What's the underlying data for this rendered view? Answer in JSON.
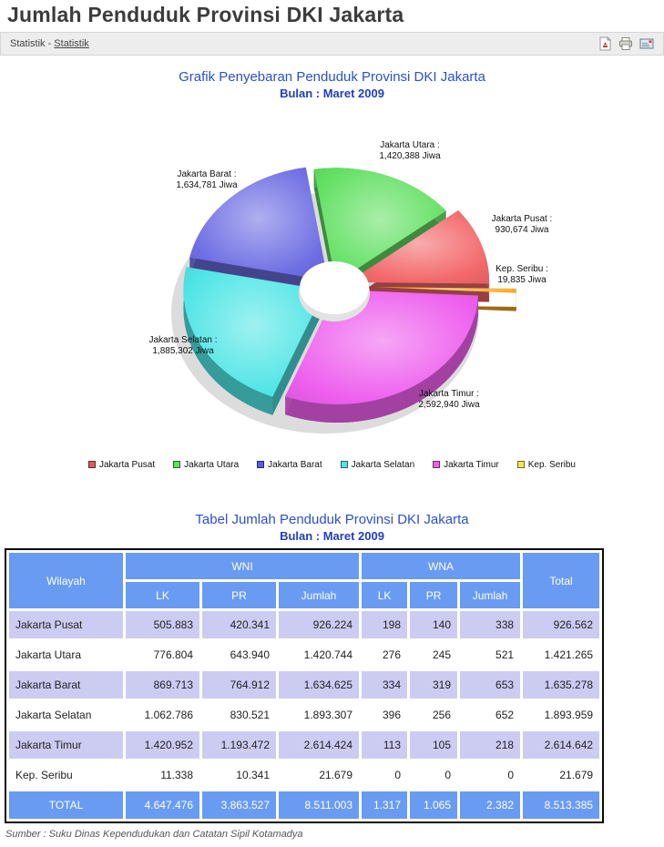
{
  "page": {
    "title": "Jumlah Penduduk Provinsi DKI Jakarta"
  },
  "breadcrumb": {
    "section": "Statistik",
    "separator": " - ",
    "current": "Statistik"
  },
  "toolbar": {
    "icons": [
      "pdf",
      "print",
      "email"
    ]
  },
  "chart_data": {
    "type": "pie",
    "style": "3d-donut-exploded",
    "title": "Grafik Penyebaran Penduduk Provinsi DKI Jakarta",
    "subtitle": "Bulan : Maret 2009",
    "unit": "Jiwa",
    "slices": [
      {
        "name": "Jakarta Utara",
        "value": 1420388,
        "label_line1": "Jakarta Utara :",
        "label_line2": "1,420,388 Jiwa",
        "color": "#62e062"
      },
      {
        "name": "Jakarta Pusat",
        "value": 930674,
        "label_line1": "Jakarta Pusat :",
        "label_line2": "930,674 Jiwa",
        "color": "#f2686a"
      },
      {
        "name": "Kep. Seribu",
        "value": 19835,
        "label_line1": "Kep. Seribu :",
        "label_line2": "19,835 Jiwa",
        "color": "#ffaa22",
        "side": "#ff6b8a"
      },
      {
        "name": "Jakarta Timur",
        "value": 2592940,
        "label_line1": "Jakarta Timur :",
        "label_line2": "2,592,940 Jiwa",
        "color": "#ee5fee"
      },
      {
        "name": "Jakarta Selatan",
        "value": 1885302,
        "label_line1": "Jakarta Selatan :",
        "label_line2": "1,885,302 Jiwa",
        "color": "#50e5e5"
      },
      {
        "name": "Jakarta Barat",
        "value": 1634781,
        "label_line1": "Jakarta Barat :",
        "label_line2": "1,634,781 Jiwa",
        "color": "#6d6de4"
      }
    ],
    "legend": [
      {
        "label": "Jakarta Pusat",
        "color": "#e05c5c"
      },
      {
        "label": "Jakarta Utara",
        "color": "#62e062"
      },
      {
        "label": "Jakarta Barat",
        "color": "#5c5ce0"
      },
      {
        "label": "Jakarta Selatan",
        "color": "#50e5e5"
      },
      {
        "label": "Jakarta Timur",
        "color": "#ee5fee"
      },
      {
        "label": "Kep. Seribu",
        "color": "#f0e855"
      }
    ]
  },
  "table": {
    "title": "Tabel Jumlah Penduduk Provinsi DKI Jakarta",
    "subtitle": "Bulan : Maret 2009",
    "header": {
      "wilayah": "Wilayah",
      "wni": "WNI",
      "wna": "WNA",
      "total": "Total",
      "lk": "LK",
      "pr": "PR",
      "jumlah": "Jumlah"
    },
    "rows": [
      {
        "wilayah": "Jakarta Pusat",
        "wni_lk": "505.883",
        "wni_pr": "420.341",
        "wni_jumlah": "926.224",
        "wna_lk": "198",
        "wna_pr": "140",
        "wna_jumlah": "338",
        "total": "926.562"
      },
      {
        "wilayah": "Jakarta Utara",
        "wni_lk": "776.804",
        "wni_pr": "643.940",
        "wni_jumlah": "1.420.744",
        "wna_lk": "276",
        "wna_pr": "245",
        "wna_jumlah": "521",
        "total": "1.421.265"
      },
      {
        "wilayah": "Jakarta Barat",
        "wni_lk": "869.713",
        "wni_pr": "764.912",
        "wni_jumlah": "1.634.625",
        "wna_lk": "334",
        "wna_pr": "319",
        "wna_jumlah": "653",
        "total": "1.635.278"
      },
      {
        "wilayah": "Jakarta Selatan",
        "wni_lk": "1.062.786",
        "wni_pr": "830.521",
        "wni_jumlah": "1.893.307",
        "wna_lk": "396",
        "wna_pr": "256",
        "wna_jumlah": "652",
        "total": "1.893.959"
      },
      {
        "wilayah": "Jakarta Timur",
        "wni_lk": "1.420.952",
        "wni_pr": "1.193.472",
        "wni_jumlah": "2.614.424",
        "wna_lk": "113",
        "wna_pr": "105",
        "wna_jumlah": "218",
        "total": "2.614.642"
      },
      {
        "wilayah": "Kep. Seribu",
        "wni_lk": "11.338",
        "wni_pr": "10.341",
        "wni_jumlah": "21.679",
        "wna_lk": "0",
        "wna_pr": "0",
        "wna_jumlah": "0",
        "total": "21.679"
      }
    ],
    "total_row": {
      "wilayah": "TOTAL",
      "wni_lk": "4.647.476",
      "wni_pr": "3.863.527",
      "wni_jumlah": "8.511.003",
      "wna_lk": "1.317",
      "wna_pr": "1.065",
      "wna_jumlah": "2.382",
      "total": "8.513.385"
    },
    "source": "Sumber : Suku Dinas Kependudukan dan Catatan Sipil Kotamadya"
  }
}
